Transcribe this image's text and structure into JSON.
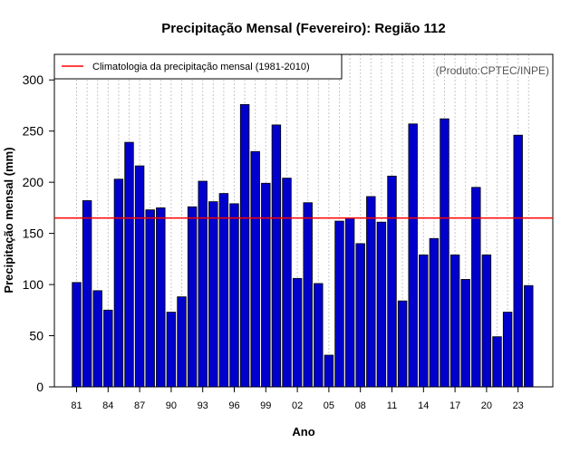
{
  "chart_data": {
    "type": "bar",
    "title": "Precipitação Mensal (Fevereiro): Região 112",
    "xlabel": "Ano",
    "ylabel": "Precipitação mensal (mm)",
    "ylim": [
      0,
      325
    ],
    "yticks": [
      0,
      50,
      100,
      150,
      200,
      250,
      300
    ],
    "xtick_labels": [
      "81",
      "84",
      "87",
      "90",
      "93",
      "96",
      "99",
      "02",
      "05",
      "08",
      "11",
      "14",
      "17",
      "20",
      "23"
    ],
    "categories": [
      "1981",
      "1982",
      "1983",
      "1984",
      "1985",
      "1986",
      "1987",
      "1988",
      "1989",
      "1990",
      "1991",
      "1992",
      "1993",
      "1994",
      "1995",
      "1996",
      "1997",
      "1998",
      "1999",
      "2000",
      "2001",
      "2002",
      "2003",
      "2004",
      "2005",
      "2006",
      "2007",
      "2008",
      "2009",
      "2010",
      "2011",
      "2012",
      "2013",
      "2014",
      "2015",
      "2016",
      "2017",
      "2018",
      "2019",
      "2020",
      "2021",
      "2022",
      "2023",
      "2024"
    ],
    "values": [
      102,
      182,
      94,
      75,
      203,
      239,
      216,
      173,
      175,
      73,
      88,
      176,
      201,
      181,
      189,
      179,
      276,
      230,
      199,
      256,
      204,
      106,
      180,
      101,
      31,
      162,
      165,
      140,
      186,
      161,
      206,
      84,
      257,
      129,
      145,
      262,
      129,
      105,
      195,
      129,
      49,
      73,
      246,
      99
    ],
    "bar_color": "#0000CD",
    "reference_line": {
      "label": "Climatologia da precipitação mensal (1981-2010)",
      "value": 165,
      "color": "#ff0000"
    },
    "grid": true,
    "legend_position": "top-left",
    "credit": "(Produto:CPTEC/INPE)"
  }
}
